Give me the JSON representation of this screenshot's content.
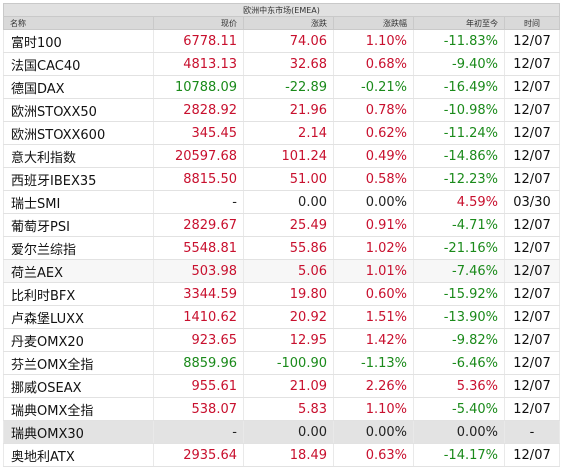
{
  "region_title": "欧洲中东市场(EMEA)",
  "headers": [
    "名称",
    "现价",
    "涨跌",
    "涨跌幅",
    "年初至今",
    "时间"
  ],
  "rows": [
    {
      "name": "富时100",
      "price": "6778.11",
      "change": "74.06",
      "pct": "1.10%",
      "ytd": "-11.83%",
      "time": "12/07",
      "dir": "up",
      "ytd_dir": "down"
    },
    {
      "name": "法国CAC40",
      "price": "4813.13",
      "change": "32.68",
      "pct": "0.68%",
      "ytd": "-9.40%",
      "time": "12/07",
      "dir": "up",
      "ytd_dir": "down"
    },
    {
      "name": "德国DAX",
      "price": "10788.09",
      "change": "-22.89",
      "pct": "-0.21%",
      "ytd": "-16.49%",
      "time": "12/07",
      "dir": "down",
      "ytd_dir": "down"
    },
    {
      "name": "欧洲STOXX50",
      "price": "2828.92",
      "change": "21.96",
      "pct": "0.78%",
      "ytd": "-10.98%",
      "time": "12/07",
      "dir": "up",
      "ytd_dir": "down"
    },
    {
      "name": "欧洲STOXX600",
      "price": "345.45",
      "change": "2.14",
      "pct": "0.62%",
      "ytd": "-11.24%",
      "time": "12/07",
      "dir": "up",
      "ytd_dir": "down"
    },
    {
      "name": "意大利指数",
      "price": "20597.68",
      "change": "101.24",
      "pct": "0.49%",
      "ytd": "-14.86%",
      "time": "12/07",
      "dir": "up",
      "ytd_dir": "down"
    },
    {
      "name": "西班牙IBEX35",
      "price": "8815.50",
      "change": "51.00",
      "pct": "0.58%",
      "ytd": "-12.23%",
      "time": "12/07",
      "dir": "up",
      "ytd_dir": "down"
    },
    {
      "name": "瑞士SMI",
      "price": "-",
      "change": "0.00",
      "pct": "0.00%",
      "ytd": "4.59%",
      "time": "03/30",
      "dir": "flat",
      "ytd_dir": "up"
    },
    {
      "name": "葡萄牙PSI",
      "price": "2829.67",
      "change": "25.49",
      "pct": "0.91%",
      "ytd": "-4.71%",
      "time": "12/07",
      "dir": "up",
      "ytd_dir": "down"
    },
    {
      "name": "爱尔兰综指",
      "price": "5548.81",
      "change": "55.86",
      "pct": "1.02%",
      "ytd": "-21.16%",
      "time": "12/07",
      "dir": "up",
      "ytd_dir": "down"
    },
    {
      "name": "荷兰AEX",
      "price": "503.98",
      "change": "5.06",
      "pct": "1.01%",
      "ytd": "-7.46%",
      "time": "12/07",
      "dir": "up",
      "ytd_dir": "down"
    },
    {
      "name": "比利时BFX",
      "price": "3344.59",
      "change": "19.80",
      "pct": "0.60%",
      "ytd": "-15.92%",
      "time": "12/07",
      "dir": "up",
      "ytd_dir": "down"
    },
    {
      "name": "卢森堡LUXX",
      "price": "1410.62",
      "change": "20.92",
      "pct": "1.51%",
      "ytd": "-13.90%",
      "time": "12/07",
      "dir": "up",
      "ytd_dir": "down"
    },
    {
      "name": "丹麦OMX20",
      "price": "923.65",
      "change": "12.95",
      "pct": "1.42%",
      "ytd": "-9.82%",
      "time": "12/07",
      "dir": "up",
      "ytd_dir": "down"
    },
    {
      "name": "芬兰OMX全指",
      "price": "8859.96",
      "change": "-100.90",
      "pct": "-1.13%",
      "ytd": "-6.46%",
      "time": "12/07",
      "dir": "down",
      "ytd_dir": "down"
    },
    {
      "name": "挪威OSEAX",
      "price": "955.61",
      "change": "21.09",
      "pct": "2.26%",
      "ytd": "5.36%",
      "time": "12/07",
      "dir": "up",
      "ytd_dir": "up"
    },
    {
      "name": "瑞典OMX全指",
      "price": "538.07",
      "change": "5.83",
      "pct": "1.10%",
      "ytd": "-5.40%",
      "time": "12/07",
      "dir": "up",
      "ytd_dir": "down"
    },
    {
      "name": "瑞典OMX30",
      "price": "-",
      "change": "0.00",
      "pct": "0.00%",
      "ytd": "0.00%",
      "time": "-",
      "dir": "flat",
      "ytd_dir": "flat"
    },
    {
      "name": "奥地利ATX",
      "price": "2935.64",
      "change": "18.49",
      "pct": "0.63%",
      "ytd": "-14.17%",
      "time": "12/07",
      "dir": "up",
      "ytd_dir": "down"
    }
  ],
  "colors": {
    "up": "#c8102e",
    "down": "#1a8a1a",
    "flat": "#222222",
    "header_bg": "#d9d9d9",
    "highlight_row_bg": "#e3e3e3"
  }
}
